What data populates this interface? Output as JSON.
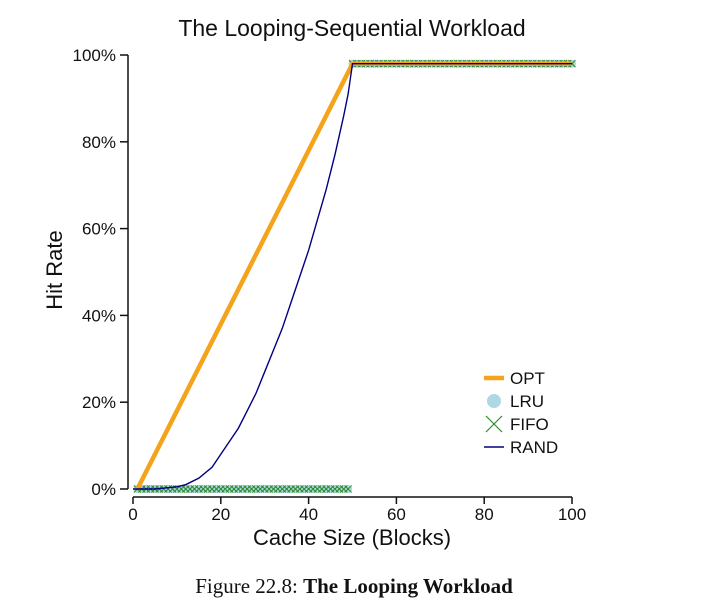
{
  "chart_data": {
    "type": "line",
    "title": "The Looping-Sequential Workload",
    "xlabel": "Cache Size (Blocks)",
    "ylabel": "Hit Rate",
    "xlim": [
      0,
      100
    ],
    "ylim": [
      0,
      100
    ],
    "xticks": [
      0,
      20,
      40,
      60,
      80,
      100
    ],
    "yticks": [
      0,
      20,
      40,
      60,
      80,
      100
    ],
    "xtick_labels": [
      "0",
      "20",
      "40",
      "60",
      "80",
      "100"
    ],
    "ytick_labels": [
      "0%",
      "20%",
      "40%",
      "60%",
      "80%",
      "100%"
    ],
    "grid": false,
    "legend_position": "bottom-right",
    "series": [
      {
        "name": "OPT",
        "color": "#f5a31a",
        "style": "thick-line",
        "x": [
          1,
          50,
          100
        ],
        "y": [
          0,
          98,
          98
        ]
      },
      {
        "name": "LRU",
        "color": "#add8e6",
        "style": "circle-markers",
        "x": [
          1,
          49,
          50,
          100
        ],
        "y": [
          0,
          0,
          98,
          98
        ]
      },
      {
        "name": "FIFO",
        "color": "#2e8b2e",
        "style": "x-markers",
        "x": [
          1,
          49,
          50,
          100
        ],
        "y": [
          0,
          0,
          98,
          98
        ]
      },
      {
        "name": "RAND",
        "color": "#000080",
        "style": "thin-line",
        "x": [
          0,
          5,
          10,
          12,
          15,
          18,
          20,
          22,
          24,
          26,
          28,
          30,
          32,
          34,
          36,
          38,
          40,
          42,
          44,
          46,
          48,
          49,
          50,
          60,
          80,
          100
        ],
        "y": [
          0,
          0,
          0.5,
          1,
          2.5,
          5,
          8,
          11,
          14,
          18,
          22,
          27,
          32,
          37,
          43,
          49,
          55,
          62,
          69,
          77,
          86,
          91,
          98,
          98,
          98,
          98
        ]
      }
    ]
  },
  "caption": {
    "label": "Figure 22.8:",
    "title": "The Looping Workload"
  }
}
